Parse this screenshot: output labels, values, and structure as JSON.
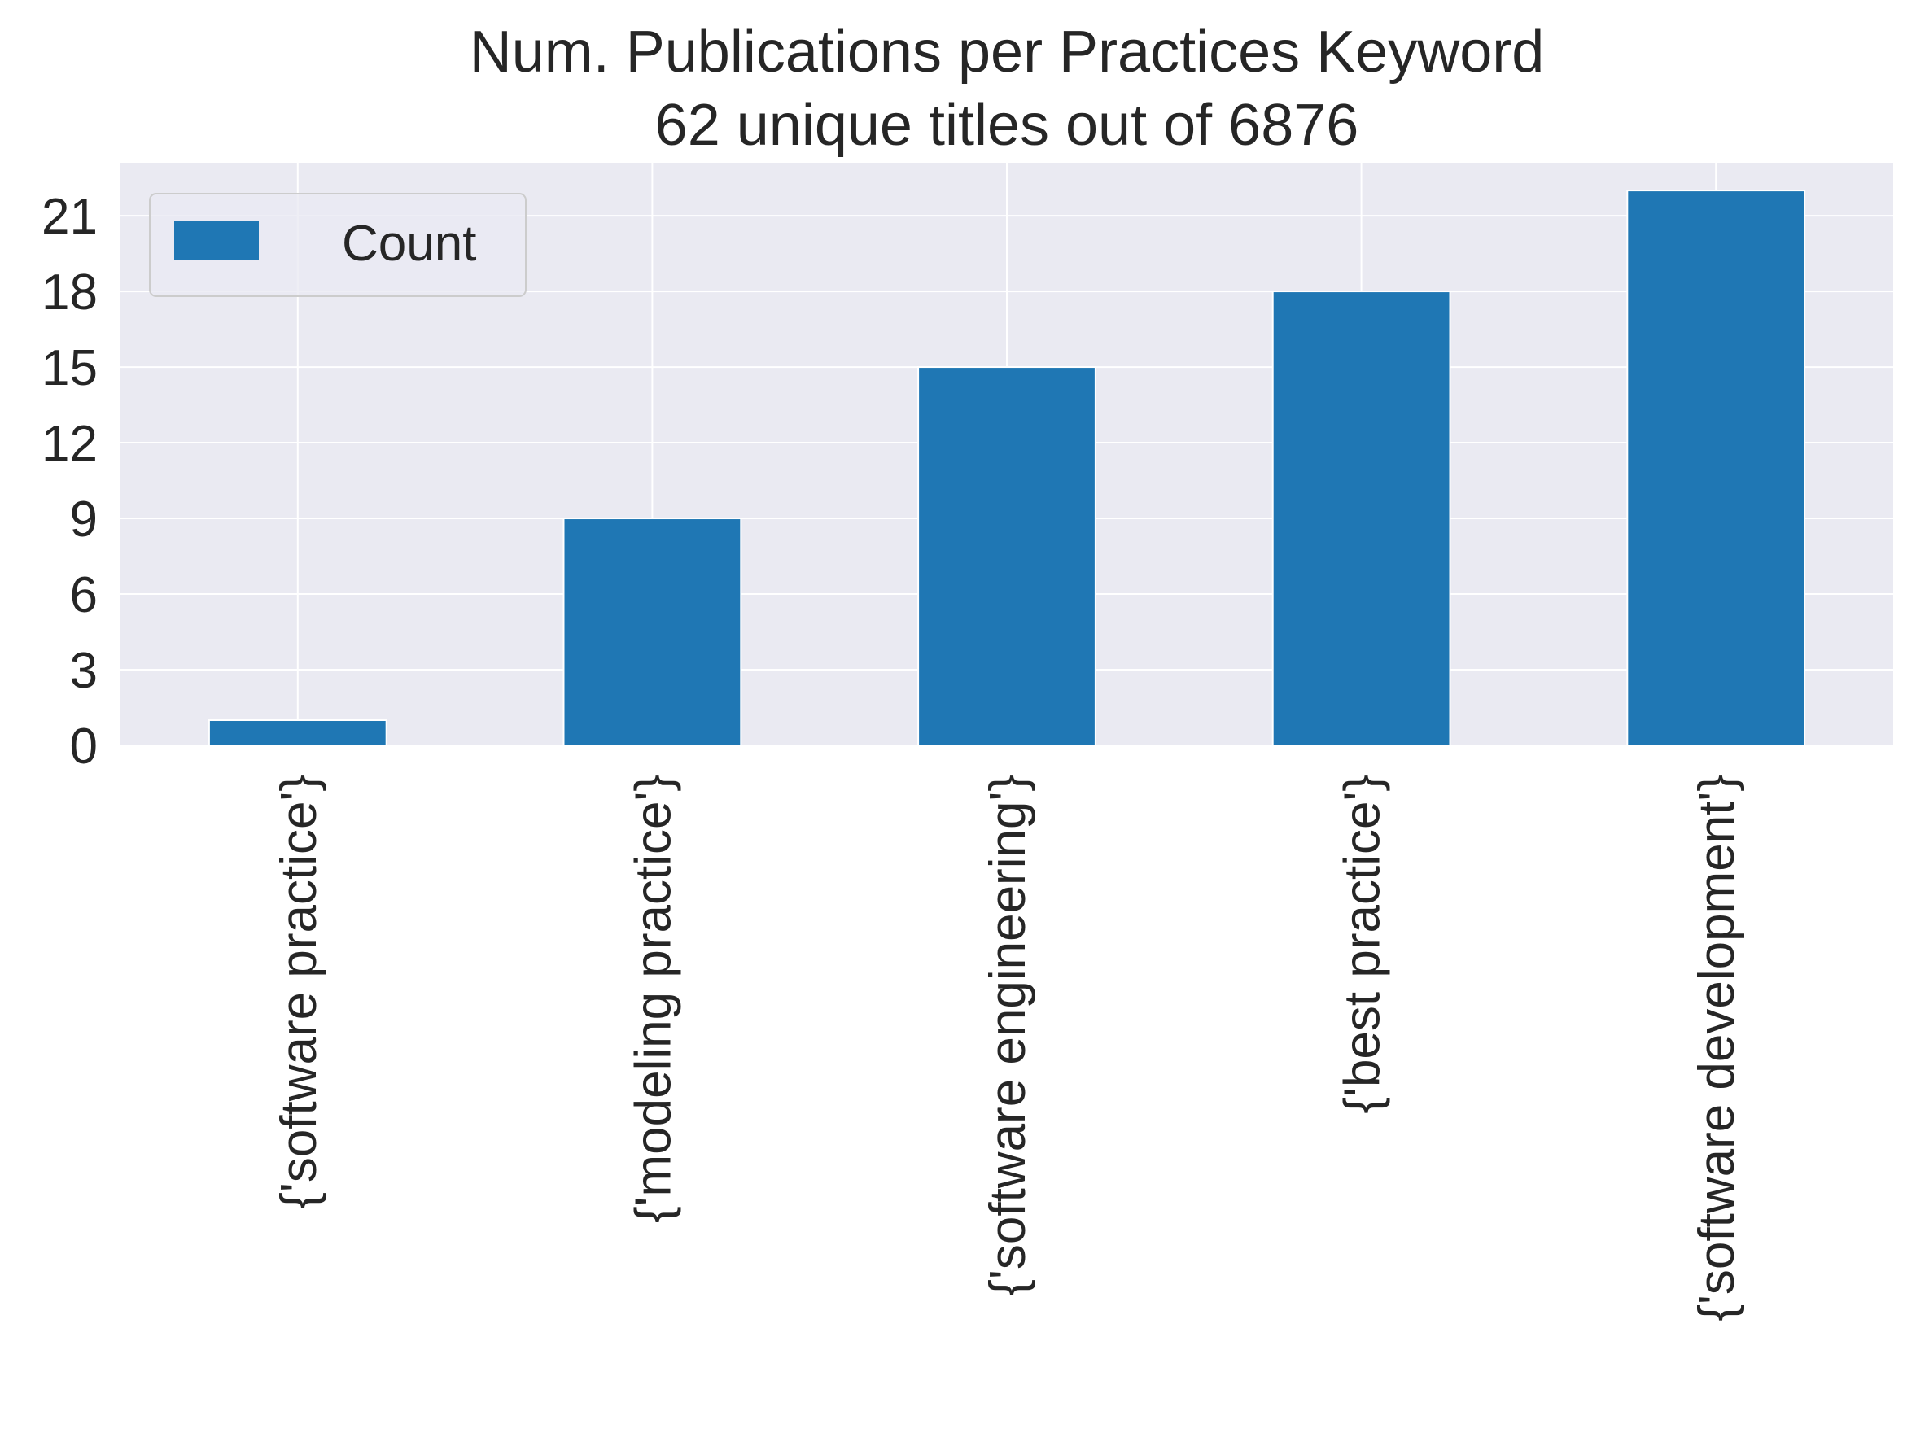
{
  "chart_data": {
    "type": "bar",
    "title": [
      "Num. Publications per Practices Keyword",
      "62 unique titles out of 6876"
    ],
    "xlabel": "",
    "ylabel": "",
    "categories": [
      "{'software practice'}",
      "{'modeling practice'}",
      "{'software engineering'}",
      "{'best practice'}",
      "{'software development'}"
    ],
    "series": [
      {
        "name": "Count",
        "values": [
          1,
          9,
          15,
          18,
          22
        ]
      }
    ],
    "yticks": [
      0,
      3,
      6,
      9,
      12,
      15,
      18,
      21
    ],
    "ylim": [
      0,
      23.1
    ],
    "grid": true,
    "legend_position": "top-left",
    "colors": {
      "bar": "#1f77b4",
      "axes_background": "#eaeaf2",
      "grid": "#ffffff",
      "text": "#262626"
    }
  }
}
